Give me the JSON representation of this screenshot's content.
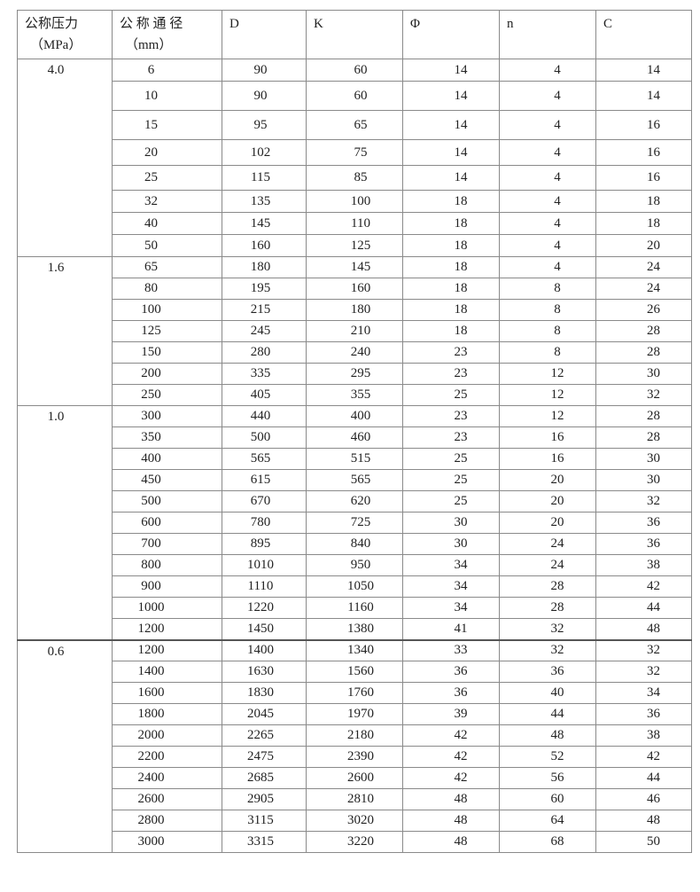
{
  "header": {
    "pressure": "公称压力",
    "pressure_unit": "（MPa）",
    "diameter": "公 称 通 径",
    "diameter_unit": "（mm）",
    "D": "D",
    "K": "K",
    "phi": "Φ",
    "n": "n",
    "C": "C"
  },
  "groups": [
    {
      "pressure": "4.0",
      "rows": [
        [
          "6",
          "90",
          "60",
          "14",
          "4",
          "14"
        ],
        [
          "10",
          "90",
          "60",
          "14",
          "4",
          "14"
        ],
        [
          "15",
          "95",
          "65",
          "14",
          "4",
          "16"
        ],
        [
          "20",
          "102",
          "75",
          "14",
          "4",
          "16"
        ],
        [
          "25",
          "115",
          "85",
          "14",
          "4",
          "16"
        ],
        [
          "32",
          "135",
          "100",
          "18",
          "4",
          "18"
        ],
        [
          "40",
          "145",
          "110",
          "18",
          "4",
          "18"
        ],
        [
          "50",
          "160",
          "125",
          "18",
          "4",
          "20"
        ]
      ]
    },
    {
      "pressure": "1.6",
      "rows": [
        [
          "65",
          "180",
          "145",
          "18",
          "4",
          "24"
        ],
        [
          "80",
          "195",
          "160",
          "18",
          "8",
          "24"
        ],
        [
          "100",
          "215",
          "180",
          "18",
          "8",
          "26"
        ],
        [
          "125",
          "245",
          "210",
          "18",
          "8",
          "28"
        ],
        [
          "150",
          "280",
          "240",
          "23",
          "8",
          "28"
        ],
        [
          "200",
          "335",
          "295",
          "23",
          "12",
          "30"
        ],
        [
          "250",
          "405",
          "355",
          "25",
          "12",
          "32"
        ]
      ]
    },
    {
      "pressure": "1.0",
      "rows": [
        [
          "300",
          "440",
          "400",
          "23",
          "12",
          "28"
        ],
        [
          "350",
          "500",
          "460",
          "23",
          "16",
          "28"
        ],
        [
          "400",
          "565",
          "515",
          "25",
          "16",
          "30"
        ],
        [
          "450",
          "615",
          "565",
          "25",
          "20",
          "30"
        ],
        [
          "500",
          "670",
          "620",
          "25",
          "20",
          "32"
        ],
        [
          "600",
          "780",
          "725",
          "30",
          "20",
          "36"
        ],
        [
          "700",
          "895",
          "840",
          "30",
          "24",
          "36"
        ],
        [
          "800",
          "1010",
          "950",
          "34",
          "24",
          "38"
        ],
        [
          "900",
          "1110",
          "1050",
          "34",
          "28",
          "42"
        ],
        [
          "1000",
          "1220",
          "1160",
          "34",
          "28",
          "44"
        ],
        [
          "1200",
          "1450",
          "1380",
          "41",
          "32",
          "48"
        ]
      ]
    },
    {
      "pressure": "0.6",
      "rows": [
        [
          "1200",
          "1400",
          "1340",
          "33",
          "32",
          "32"
        ],
        [
          "1400",
          "1630",
          "1560",
          "36",
          "36",
          "32"
        ],
        [
          "1600",
          "1830",
          "1760",
          "36",
          "40",
          "34"
        ],
        [
          "1800",
          "2045",
          "1970",
          "39",
          "44",
          "36"
        ],
        [
          "2000",
          "2265",
          "2180",
          "42",
          "48",
          "38"
        ],
        [
          "2200",
          "2475",
          "2390",
          "42",
          "52",
          "42"
        ],
        [
          "2400",
          "2685",
          "2600",
          "42",
          "56",
          "44"
        ],
        [
          "2600",
          "2905",
          "2810",
          "48",
          "60",
          "46"
        ],
        [
          "2800",
          "3115",
          "3020",
          "48",
          "64",
          "48"
        ],
        [
          "3000",
          "3315",
          "3220",
          "48",
          "68",
          "50"
        ]
      ]
    }
  ]
}
